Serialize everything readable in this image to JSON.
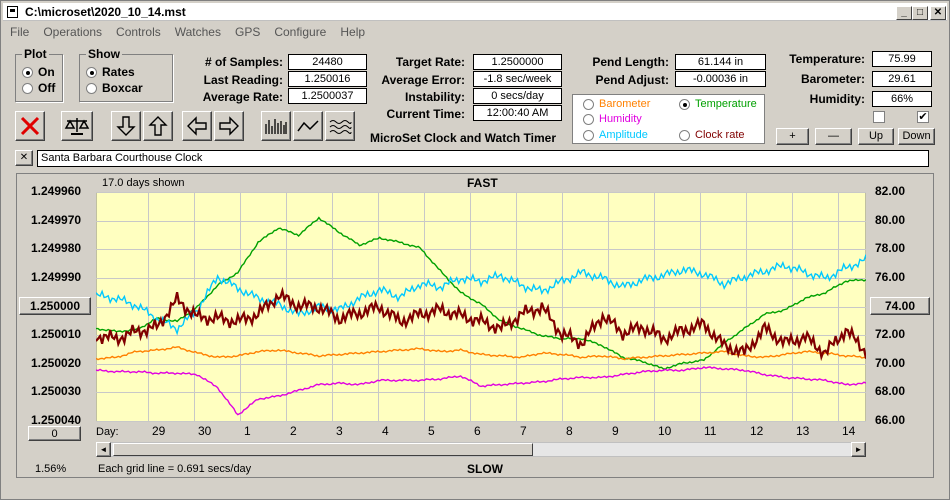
{
  "window": {
    "title": "C:\\microset\\2020_10_14.mst"
  },
  "menu": [
    "File",
    "Operations",
    "Controls",
    "Watches",
    "GPS",
    "Configure",
    "Help"
  ],
  "plot_group": {
    "title": "Plot",
    "options": [
      {
        "label": "On",
        "selected": true
      },
      {
        "label": "Off",
        "selected": false
      }
    ]
  },
  "show_group": {
    "title": "Show",
    "options": [
      {
        "label": "Rates",
        "selected": true
      },
      {
        "label": "Boxcar",
        "selected": false
      }
    ]
  },
  "stats": {
    "samples_label": "# of Samples:",
    "samples": "24480",
    "last_reading_label": "Last Reading:",
    "last_reading": "1.250016",
    "average_rate_label": "Average Rate:",
    "average_rate": "1.2500037",
    "target_rate_label": "Target Rate:",
    "target_rate": "1.2500000",
    "average_error_label": "Average Error:",
    "average_error": "-1.8 sec/week",
    "instability_label": "Instability:",
    "instability": "0 secs/day",
    "current_time_label": "Current Time:",
    "current_time": "12:00:40 AM",
    "pend_length_label": "Pend Length:",
    "pend_length": "61.144 in",
    "pend_adjust_label": "Pend Adjust:",
    "pend_adjust": "-0.00036 in",
    "temperature_label": "Temperature:",
    "temperature": "75.99",
    "barometer_label": "Barometer:",
    "barometer": "29.61",
    "humidity_label": "Humidity:",
    "humidity": "66%"
  },
  "app_caption": "MicroSet Clock and Watch Timer",
  "legend": [
    {
      "label": "Barometer",
      "color": "#ff8000",
      "selected": false
    },
    {
      "label": "Temperature",
      "color": "#00a000",
      "selected": true
    },
    {
      "label": "Humidity",
      "color": "#e000e0",
      "selected": false
    },
    {
      "label": "Amplitude",
      "color": "#00c8ff",
      "selected": false
    },
    {
      "label": "Clock rate",
      "color": "#800000",
      "selected": false
    }
  ],
  "scale_buttons": {
    "plus": "+",
    "minus": "—",
    "up": "Up",
    "down": "Down"
  },
  "checkboxes": [
    {
      "checked": false
    },
    {
      "checked": true
    }
  ],
  "clock_name": "Santa Barbara Courthouse Clock",
  "close_label": "✕",
  "chart": {
    "days_shown": "17.0 days shown",
    "fast_label": "FAST",
    "slow_label": "SLOW",
    "grid_note": "Each grid line = 0.691 secs/day",
    "percent": "1.56%",
    "center_left_button": "1.250000",
    "center_right_button": "74.00",
    "bottom_left_button": "0",
    "day_label": "Day:",
    "scroll_left": "◄",
    "scroll_right": "►"
  },
  "chart_data": {
    "type": "line",
    "left_axis_ticks": [
      "1.249960",
      "1.249970",
      "1.249980",
      "1.249990",
      "1.250000",
      "1.250010",
      "1.250020",
      "1.250030",
      "1.250040"
    ],
    "right_axis_ticks": [
      "82.00",
      "80.00",
      "78.00",
      "76.00",
      "74.00",
      "72.00",
      "70.00",
      "68.00",
      "66.00"
    ],
    "x_ticks": [
      "29",
      "30",
      "1",
      "2",
      "3",
      "4",
      "5",
      "6",
      "7",
      "8",
      "9",
      "10",
      "11",
      "12",
      "13",
      "14"
    ],
    "right_range": [
      66,
      82
    ],
    "left_range": [
      1.25004,
      1.24996
    ],
    "grid": true,
    "plot_background": "#ffffc0",
    "series": [
      {
        "name": "Temperature",
        "color": "#00a000",
        "values": [
          72.5,
          72.3,
          72.4,
          73.2,
          73.0,
          74.0,
          75.5,
          76.4,
          78.5,
          79.5,
          79.0,
          80.2,
          79.2,
          78.3,
          78.8,
          78.5,
          78.1,
          76.5,
          75.0,
          74.2,
          73.0,
          72.5,
          72.0,
          71.8,
          71.8,
          71.3,
          70.5,
          70.2,
          69.7,
          70.1,
          70.3,
          71.5,
          72.5,
          73.5,
          73.8,
          74.6,
          75.0,
          75.8,
          75.9
        ]
      },
      {
        "name": "Amplitude",
        "color": "#00c8ff",
        "values": [
          74.8,
          74.6,
          74.1,
          73.2,
          72.5,
          73.8,
          76.1,
          75.3,
          74.6,
          74.2,
          73.5,
          74.0,
          73.8,
          74.6,
          75.2,
          74.7,
          75.6,
          75.4,
          76.0,
          75.8,
          76.2,
          75.5,
          75.1,
          75.8,
          76.4,
          76.0,
          75.4,
          75.9,
          76.2,
          76.6,
          76.3,
          75.6,
          76.1,
          76.5,
          76.9,
          76.4,
          76.0,
          76.7,
          77.3
        ]
      },
      {
        "name": "Barometer",
        "color": "#ff8000",
        "values": [
          70.4,
          70.5,
          70.9,
          71.0,
          71.2,
          70.8,
          70.5,
          70.6,
          70.9,
          71.0,
          70.8,
          70.6,
          70.7,
          70.8,
          70.9,
          71.0,
          71.1,
          70.9,
          71.0,
          70.7,
          70.6,
          70.5,
          70.8,
          70.7,
          70.5,
          70.6,
          70.4,
          70.5,
          70.6,
          70.7,
          70.8,
          70.9,
          70.6,
          70.5,
          70.7,
          70.9,
          70.8,
          70.6,
          70.5
        ]
      },
      {
        "name": "Humidity",
        "color": "#e000e0",
        "values": [
          69.6,
          69.5,
          69.5,
          69.4,
          69.4,
          69.3,
          68.4,
          66.5,
          67.6,
          67.8,
          68.2,
          68.6,
          68.7,
          68.6,
          68.9,
          68.9,
          68.9,
          69.0,
          69.2,
          68.5,
          68.6,
          68.7,
          68.8,
          69.0,
          69.1,
          69.1,
          69.3,
          69.5,
          69.6,
          69.6,
          69.8,
          69.7,
          69.6,
          69.3,
          69.1,
          69.0,
          68.9,
          68.6,
          68.7
        ]
      },
      {
        "name": "Clock rate",
        "color": "#800000",
        "values": [
          72.0,
          71.8,
          72.3,
          72.6,
          74.5,
          73.3,
          73.2,
          73.0,
          73.5,
          74.8,
          74.1,
          74.0,
          73.2,
          73.6,
          74.0,
          73.0,
          73.5,
          73.8,
          73.4,
          73.0,
          72.5,
          73.5,
          74.0,
          72.1,
          71.5,
          73.4,
          72.2,
          72.6,
          71.8,
          72.4,
          72.8,
          71.3,
          70.8,
          72.5,
          71.5,
          71.9,
          70.8,
          72.4,
          70.9
        ]
      }
    ]
  }
}
